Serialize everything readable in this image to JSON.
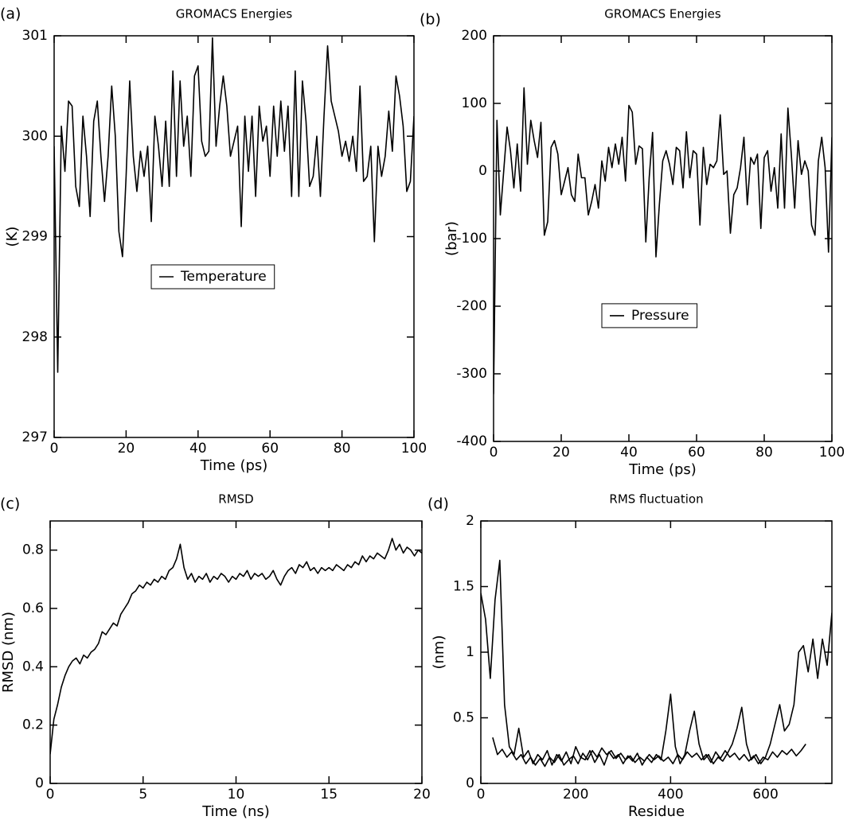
{
  "chart_data": [
    {
      "type": "line",
      "panel_label": "(a)",
      "title": "GROMACS Energies",
      "xlabel": "Time (ps)",
      "ylabel": "(K)",
      "xlim": [
        0,
        100
      ],
      "ylim": [
        297,
        301
      ],
      "xticks": [
        0,
        20,
        40,
        60,
        80,
        100
      ],
      "yticks": [
        297,
        298,
        299,
        300,
        301
      ],
      "legend": "center left",
      "series": [
        {
          "name": "Temperature",
          "color": "#000000",
          "x": [
            0,
            1,
            2,
            3,
            4,
            5,
            6,
            7,
            8,
            9,
            10,
            11,
            12,
            13,
            14,
            15,
            16,
            17,
            18,
            19,
            20,
            21,
            22,
            23,
            24,
            25,
            26,
            27,
            28,
            29,
            30,
            31,
            32,
            33,
            34,
            35,
            36,
            37,
            38,
            39,
            40,
            41,
            42,
            43,
            44,
            45,
            46,
            47,
            48,
            49,
            50,
            51,
            52,
            53,
            54,
            55,
            56,
            57,
            58,
            59,
            60,
            61,
            62,
            63,
            64,
            65,
            66,
            67,
            68,
            69,
            70,
            71,
            72,
            73,
            74,
            75,
            76,
            77,
            78,
            79,
            80,
            81,
            82,
            83,
            84,
            85,
            86,
            87,
            88,
            89,
            90,
            91,
            92,
            93,
            94,
            95,
            96,
            97,
            98,
            99,
            100
          ],
          "values": [
            299.9,
            297.65,
            300.1,
            299.65,
            300.35,
            300.3,
            299.5,
            299.3,
            300.2,
            299.8,
            299.2,
            300.15,
            300.35,
            299.8,
            299.35,
            299.8,
            300.5,
            300.0,
            299.05,
            298.8,
            299.6,
            300.55,
            299.8,
            299.45,
            299.85,
            299.6,
            299.9,
            299.15,
            300.2,
            299.9,
            299.5,
            300.15,
            299.5,
            300.65,
            299.6,
            300.55,
            299.9,
            300.2,
            299.6,
            300.6,
            300.7,
            299.95,
            299.8,
            299.85,
            300.98,
            299.9,
            300.3,
            300.6,
            300.3,
            299.8,
            299.95,
            300.1,
            299.1,
            300.2,
            299.65,
            300.2,
            299.4,
            300.3,
            299.95,
            300.1,
            299.6,
            300.3,
            299.8,
            300.35,
            299.85,
            300.3,
            299.4,
            300.65,
            299.4,
            300.55,
            300.15,
            299.5,
            299.6,
            300.0,
            299.4,
            300.2,
            300.9,
            300.35,
            300.2,
            300.05,
            299.8,
            299.95,
            299.75,
            300.0,
            299.65,
            300.5,
            299.55,
            299.6,
            299.9,
            298.95,
            299.9,
            299.6,
            299.8,
            300.25,
            299.85,
            300.6,
            300.4,
            300.1,
            299.45,
            299.55,
            300.2
          ]
        }
      ]
    },
    {
      "type": "line",
      "panel_label": "(b)",
      "title": "GROMACS Energies",
      "xlabel": "Time (ps)",
      "ylabel": "(bar)",
      "xlim": [
        0,
        100
      ],
      "ylim": [
        -400,
        200
      ],
      "xticks": [
        0,
        20,
        40,
        60,
        80,
        100
      ],
      "yticks": [
        -400,
        -300,
        -200,
        -100,
        0,
        100,
        200
      ],
      "legend": "center left",
      "series": [
        {
          "name": "Pressure",
          "color": "#000000",
          "x": [
            0,
            1,
            2,
            3,
            4,
            5,
            6,
            7,
            8,
            9,
            10,
            11,
            12,
            13,
            14,
            15,
            16,
            17,
            18,
            19,
            20,
            21,
            22,
            23,
            24,
            25,
            26,
            27,
            28,
            29,
            30,
            31,
            32,
            33,
            34,
            35,
            36,
            37,
            38,
            39,
            40,
            41,
            42,
            43,
            44,
            45,
            46,
            47,
            48,
            49,
            50,
            51,
            52,
            53,
            54,
            55,
            56,
            57,
            58,
            59,
            60,
            61,
            62,
            63,
            64,
            65,
            66,
            67,
            68,
            69,
            70,
            71,
            72,
            73,
            74,
            75,
            76,
            77,
            78,
            79,
            80,
            81,
            82,
            83,
            84,
            85,
            86,
            87,
            88,
            89,
            90,
            91,
            92,
            93,
            94,
            95,
            96,
            97,
            98,
            99,
            100
          ],
          "values": [
            -330,
            75,
            -65,
            0,
            65,
            30,
            -25,
            40,
            -30,
            123,
            10,
            75,
            45,
            20,
            72,
            -95,
            -75,
            35,
            45,
            25,
            -35,
            -15,
            5,
            -35,
            -45,
            25,
            -10,
            -10,
            -65,
            -45,
            -20,
            -55,
            15,
            -15,
            35,
            5,
            40,
            10,
            50,
            -15,
            97,
            87,
            10,
            37,
            33,
            -105,
            -10,
            57,
            -127,
            -50,
            15,
            30,
            10,
            -20,
            35,
            30,
            -25,
            58,
            -10,
            30,
            25,
            -80,
            35,
            -20,
            10,
            5,
            15,
            83,
            -5,
            0,
            -92,
            -35,
            -25,
            5,
            50,
            -50,
            20,
            10,
            25,
            -85,
            20,
            30,
            -30,
            5,
            -55,
            55,
            -55,
            93,
            25,
            -55,
            45,
            -5,
            15,
            0,
            -80,
            -95,
            15,
            50,
            5,
            -120,
            50
          ]
        }
      ]
    },
    {
      "type": "line",
      "panel_label": "(c)",
      "title": "RMSD",
      "xlabel": "Time (ns)",
      "ylabel": "RMSD (nm)",
      "xlim": [
        0,
        20
      ],
      "ylim": [
        0,
        0.9
      ],
      "xticks": [
        0,
        5,
        10,
        15,
        20
      ],
      "yticks": [
        0,
        0.2,
        0.4,
        0.6,
        0.8
      ],
      "series": [
        {
          "color": "#000000",
          "x": [
            0,
            0.2,
            0.4,
            0.6,
            0.8,
            1,
            1.2,
            1.4,
            1.6,
            1.8,
            2,
            2.2,
            2.4,
            2.6,
            2.8,
            3,
            3.2,
            3.4,
            3.6,
            3.8,
            4,
            4.2,
            4.4,
            4.6,
            4.8,
            5,
            5.2,
            5.4,
            5.6,
            5.8,
            6,
            6.2,
            6.4,
            6.6,
            6.8,
            7,
            7.2,
            7.4,
            7.6,
            7.8,
            8,
            8.2,
            8.4,
            8.6,
            8.8,
            9,
            9.2,
            9.4,
            9.6,
            9.8,
            10,
            10.2,
            10.4,
            10.6,
            10.8,
            11,
            11.2,
            11.4,
            11.6,
            11.8,
            12,
            12.2,
            12.4,
            12.6,
            12.8,
            13,
            13.2,
            13.4,
            13.6,
            13.8,
            14,
            14.2,
            14.4,
            14.6,
            14.8,
            15,
            15.2,
            15.4,
            15.6,
            15.8,
            16,
            16.2,
            16.4,
            16.6,
            16.8,
            17,
            17.2,
            17.4,
            17.6,
            17.8,
            18,
            18.2,
            18.4,
            18.6,
            18.8,
            19,
            19.2,
            19.4,
            19.6,
            19.8,
            20
          ],
          "values": [
            0.1,
            0.22,
            0.27,
            0.33,
            0.37,
            0.4,
            0.42,
            0.43,
            0.41,
            0.44,
            0.43,
            0.45,
            0.46,
            0.48,
            0.52,
            0.51,
            0.53,
            0.55,
            0.54,
            0.58,
            0.6,
            0.62,
            0.65,
            0.66,
            0.68,
            0.67,
            0.69,
            0.68,
            0.7,
            0.69,
            0.71,
            0.7,
            0.73,
            0.74,
            0.77,
            0.82,
            0.74,
            0.7,
            0.72,
            0.69,
            0.71,
            0.7,
            0.72,
            0.69,
            0.71,
            0.7,
            0.72,
            0.71,
            0.69,
            0.71,
            0.7,
            0.72,
            0.71,
            0.73,
            0.7,
            0.72,
            0.71,
            0.72,
            0.7,
            0.71,
            0.73,
            0.7,
            0.68,
            0.71,
            0.73,
            0.74,
            0.72,
            0.75,
            0.74,
            0.76,
            0.73,
            0.74,
            0.72,
            0.74,
            0.73,
            0.74,
            0.73,
            0.75,
            0.74,
            0.73,
            0.75,
            0.74,
            0.76,
            0.75,
            0.78,
            0.76,
            0.78,
            0.77,
            0.79,
            0.78,
            0.77,
            0.8,
            0.84,
            0.8,
            0.82,
            0.79,
            0.81,
            0.8,
            0.78,
            0.8,
            0.79
          ]
        }
      ]
    },
    {
      "type": "line",
      "panel_label": "(d)",
      "title": "RMS fluctuation",
      "xlabel": "Residue",
      "ylabel": "(nm)",
      "xlim": [
        0,
        740
      ],
      "ylim": [
        0,
        2
      ],
      "xticks": [
        0,
        200,
        400,
        600
      ],
      "yticks": [
        0,
        0.5,
        1,
        1.5,
        2
      ],
      "series": [
        {
          "color": "#000000",
          "x": [
            0,
            10,
            20,
            30,
            40,
            50,
            60,
            70,
            80,
            90,
            100,
            110,
            120,
            130,
            140,
            150,
            160,
            170,
            180,
            190,
            200,
            210,
            220,
            230,
            240,
            250,
            260,
            270,
            280,
            290,
            300,
            310,
            320,
            330,
            340,
            350,
            360,
            370,
            380,
            390,
            400,
            410,
            420,
            430,
            440,
            450,
            460,
            470,
            480,
            490,
            500,
            510,
            520,
            530,
            540,
            550,
            560,
            570,
            580,
            590,
            600,
            610,
            620,
            630,
            640,
            650,
            660,
            670,
            680,
            690,
            700,
            710,
            720,
            730,
            740
          ],
          "values": [
            1.45,
            1.25,
            0.8,
            1.4,
            1.7,
            0.6,
            0.28,
            0.22,
            0.42,
            0.2,
            0.25,
            0.15,
            0.22,
            0.18,
            0.25,
            0.14,
            0.22,
            0.17,
            0.24,
            0.15,
            0.28,
            0.2,
            0.18,
            0.25,
            0.16,
            0.22,
            0.14,
            0.24,
            0.19,
            0.22,
            0.15,
            0.21,
            0.17,
            0.23,
            0.14,
            0.2,
            0.16,
            0.22,
            0.18,
            0.4,
            0.68,
            0.28,
            0.15,
            0.22,
            0.4,
            0.55,
            0.3,
            0.18,
            0.22,
            0.15,
            0.2,
            0.17,
            0.23,
            0.3,
            0.42,
            0.58,
            0.3,
            0.18,
            0.22,
            0.15,
            0.2,
            0.3,
            0.45,
            0.6,
            0.4,
            0.45,
            0.6,
            1.0,
            1.05,
            0.85,
            1.1,
            0.8,
            1.1,
            0.9,
            1.3
          ]
        },
        {
          "color": "#000000",
          "x": [
            25,
            35,
            45,
            55,
            65,
            75,
            85,
            95,
            105,
            115,
            125,
            135,
            145,
            155,
            165,
            175,
            185,
            195,
            205,
            215,
            225,
            235,
            245,
            255,
            265,
            275,
            285,
            295,
            305,
            315,
            325,
            335,
            345,
            355,
            365,
            375,
            385,
            395,
            405,
            415,
            425,
            435,
            445,
            455,
            465,
            475,
            485,
            495,
            505,
            515,
            525,
            535,
            545,
            555,
            565,
            575,
            585,
            595,
            605,
            615,
            625,
            635,
            645,
            655,
            665,
            675,
            685
          ],
          "values": [
            0.35,
            0.22,
            0.26,
            0.2,
            0.24,
            0.18,
            0.22,
            0.15,
            0.2,
            0.14,
            0.19,
            0.13,
            0.2,
            0.16,
            0.22,
            0.14,
            0.18,
            0.21,
            0.15,
            0.23,
            0.18,
            0.25,
            0.2,
            0.27,
            0.22,
            0.25,
            0.19,
            0.23,
            0.18,
            0.21,
            0.16,
            0.2,
            0.17,
            0.22,
            0.18,
            0.21,
            0.17,
            0.2,
            0.15,
            0.22,
            0.18,
            0.24,
            0.2,
            0.23,
            0.18,
            0.22,
            0.16,
            0.24,
            0.19,
            0.25,
            0.2,
            0.23,
            0.18,
            0.22,
            0.17,
            0.21,
            0.15,
            0.2,
            0.18,
            0.24,
            0.2,
            0.25,
            0.22,
            0.26,
            0.21,
            0.25,
            0.3
          ]
        }
      ]
    }
  ]
}
